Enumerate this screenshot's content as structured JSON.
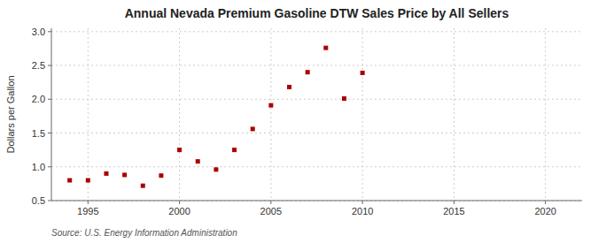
{
  "chart_data": {
    "type": "scatter",
    "title": "Annual Nevada Premium Gasoline DTW Sales Price by All Sellers",
    "y_label": "Dollars per Gallon",
    "source": "Source: U.S. Energy Information Administration",
    "x": [
      1994,
      1995,
      1996,
      1997,
      1998,
      1999,
      2000,
      2001,
      2002,
      2003,
      2004,
      2005,
      2006,
      2007,
      2008,
      2009,
      2010
    ],
    "values": [
      0.8,
      0.8,
      0.9,
      0.88,
      0.72,
      0.87,
      1.25,
      1.08,
      0.96,
      1.25,
      1.56,
      1.91,
      2.18,
      2.4,
      2.76,
      2.01,
      2.39
    ],
    "color": "#aa0000",
    "marker": "square",
    "line_style": "none",
    "xlim": [
      1993,
      2022
    ],
    "ylim": [
      0.5,
      3.05
    ],
    "xticks": [
      1995,
      2000,
      2005,
      2010,
      2015,
      2020
    ],
    "yticks": [
      0.5,
      {
        "value": 1.0,
        "label": "1.0"
      },
      1.5,
      {
        "value": 2.0,
        "label": "2.0"
      },
      2.5,
      {
        "value": 3.0,
        "label": "3.0"
      }
    ],
    "grid": true
  }
}
